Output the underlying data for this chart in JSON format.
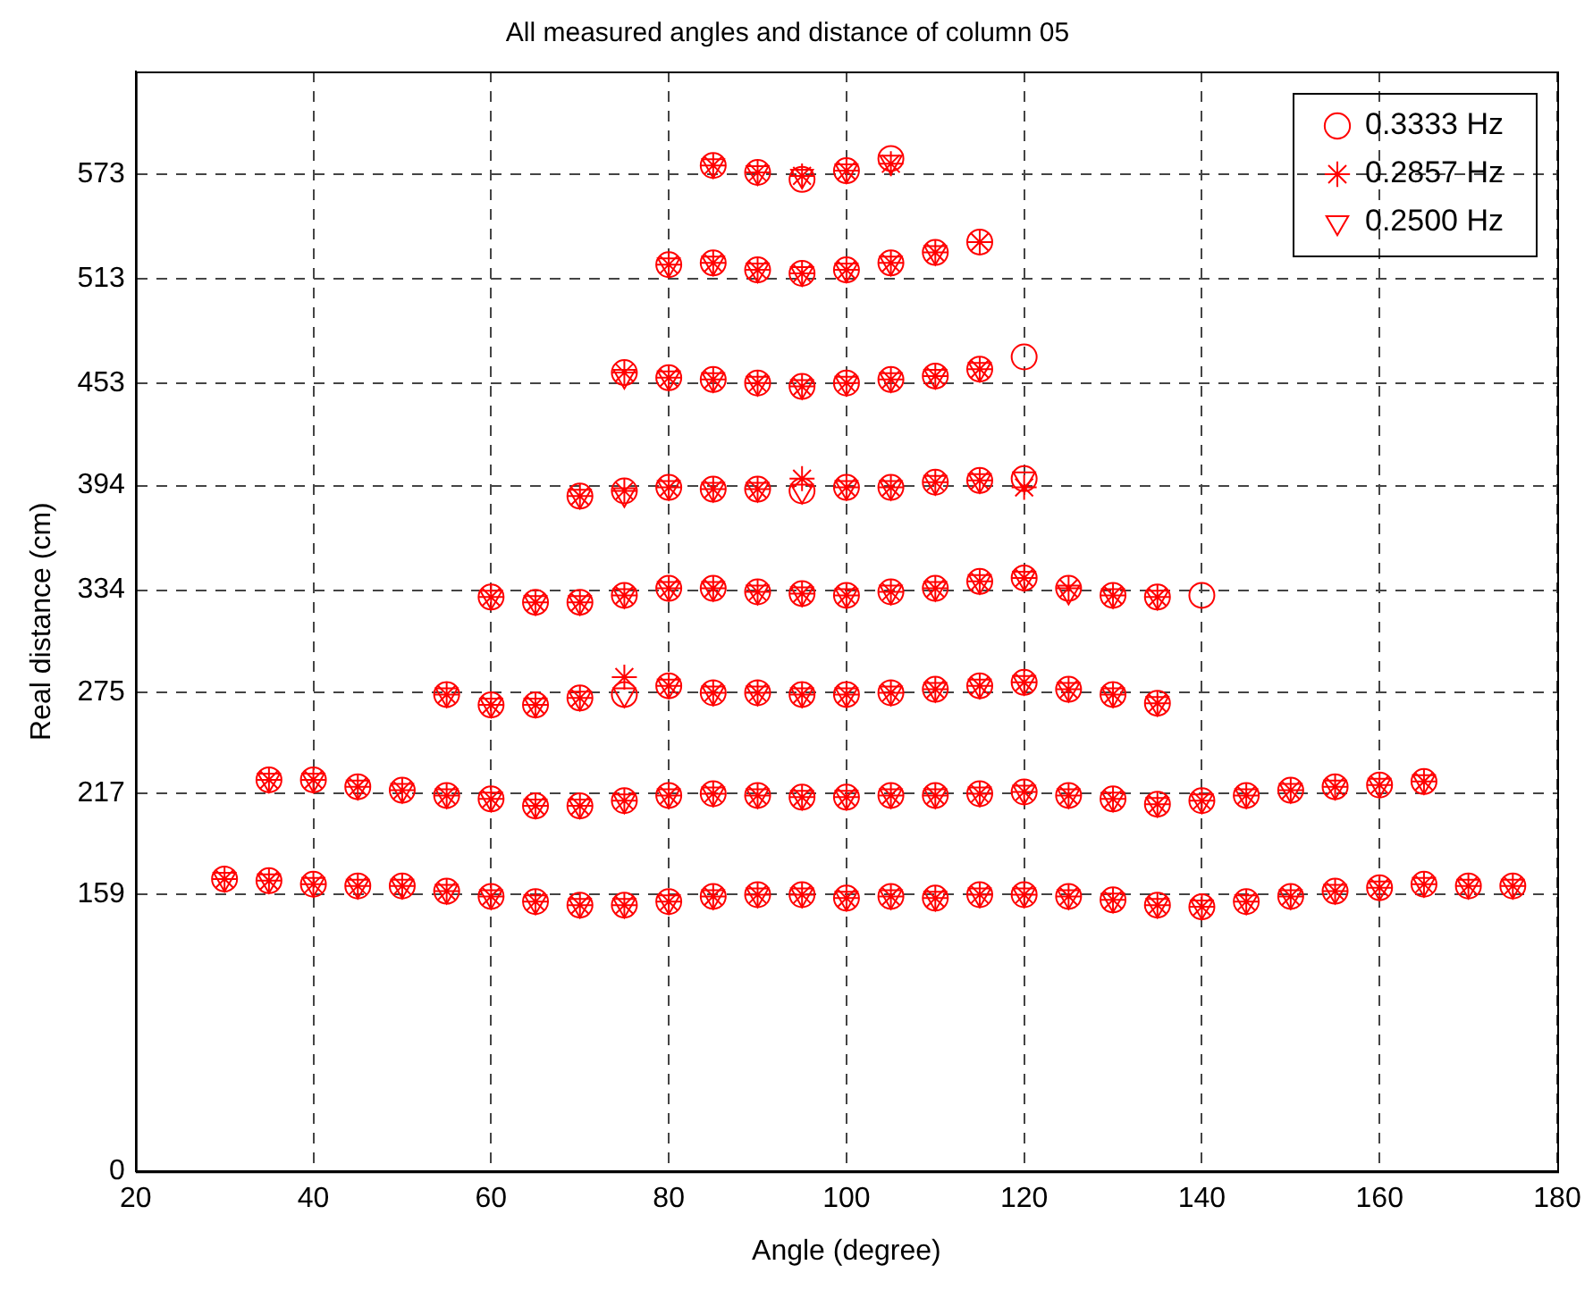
{
  "chart_data": {
    "type": "scatter",
    "title": "All measured angles and distance of column 05",
    "xlabel": "Angle (degree)",
    "ylabel": "Real distance (cm)",
    "xlim": [
      20,
      180
    ],
    "xticks": [
      20,
      40,
      60,
      80,
      100,
      120,
      140,
      160,
      180
    ],
    "ylim": [
      0,
      632
    ],
    "yticks": [
      0,
      159,
      217,
      275,
      334,
      394,
      453,
      513,
      573
    ],
    "grid": true,
    "legend": "top right",
    "series": [
      {
        "name": "0.3333 Hz",
        "color": "#ff0000",
        "marker": "circle",
        "x": [
          30,
          35,
          40,
          45,
          50,
          55,
          60,
          65,
          70,
          75,
          80,
          85,
          90,
          95,
          100,
          105,
          110,
          115,
          120,
          125,
          130,
          135,
          140,
          145,
          150,
          155,
          160,
          165,
          170,
          175,
          35,
          40,
          45,
          50,
          55,
          60,
          65,
          70,
          75,
          80,
          85,
          90,
          95,
          100,
          105,
          110,
          115,
          120,
          125,
          130,
          135,
          140,
          145,
          150,
          155,
          160,
          165,
          55,
          60,
          65,
          70,
          75,
          80,
          85,
          90,
          95,
          100,
          105,
          110,
          115,
          120,
          125,
          130,
          135,
          60,
          65,
          70,
          75,
          80,
          85,
          90,
          95,
          100,
          105,
          110,
          115,
          120,
          125,
          130,
          135,
          140,
          70,
          75,
          80,
          85,
          90,
          95,
          100,
          105,
          110,
          115,
          120,
          75,
          80,
          85,
          90,
          95,
          100,
          105,
          110,
          115,
          120,
          80,
          85,
          90,
          95,
          100,
          105,
          110,
          115,
          85,
          90,
          95,
          100,
          105
        ],
        "values": [
          168,
          167,
          165,
          164,
          164,
          161,
          158,
          155,
          153,
          153,
          155,
          158,
          159,
          159,
          157,
          158,
          157,
          159,
          159,
          158,
          156,
          153,
          152,
          155,
          158,
          161,
          163,
          165,
          164,
          164,
          225,
          225,
          221,
          219,
          216,
          214,
          210,
          210,
          213,
          216,
          217,
          216,
          215,
          215,
          216,
          216,
          217,
          218,
          216,
          214,
          211,
          213,
          216,
          219,
          221,
          222,
          224,
          274,
          268,
          268,
          272,
          274,
          279,
          275,
          275,
          274,
          274,
          275,
          277,
          279,
          281,
          277,
          274,
          269,
          330,
          327,
          327,
          331,
          335,
          335,
          333,
          332,
          331,
          333,
          335,
          339,
          341,
          335,
          331,
          330,
          331,
          388,
          391,
          393,
          392,
          392,
          391,
          393,
          393,
          396,
          397,
          398,
          459,
          456,
          455,
          453,
          451,
          453,
          455,
          457,
          461,
          468,
          521,
          522,
          518,
          516,
          518,
          522,
          528,
          534,
          578,
          574,
          570,
          575,
          582
        ]
      },
      {
        "name": "0.2857 Hz",
        "color": "#ff0000",
        "marker": "cross",
        "x": [
          30,
          35,
          40,
          45,
          50,
          55,
          60,
          65,
          70,
          75,
          80,
          85,
          90,
          95,
          100,
          105,
          110,
          115,
          120,
          125,
          130,
          135,
          140,
          145,
          150,
          155,
          160,
          165,
          170,
          175,
          35,
          40,
          45,
          50,
          55,
          60,
          65,
          70,
          75,
          80,
          85,
          90,
          95,
          100,
          105,
          110,
          115,
          120,
          125,
          130,
          135,
          140,
          145,
          150,
          155,
          160,
          165,
          55,
          60,
          65,
          70,
          75,
          80,
          85,
          90,
          95,
          100,
          105,
          110,
          115,
          120,
          125,
          130,
          135,
          60,
          65,
          70,
          75,
          80,
          85,
          90,
          95,
          100,
          105,
          110,
          115,
          120,
          125,
          130,
          135,
          70,
          75,
          80,
          85,
          90,
          95,
          100,
          105,
          110,
          115,
          120,
          75,
          80,
          85,
          90,
          95,
          100,
          105,
          110,
          115,
          80,
          85,
          90,
          95,
          100,
          105,
          110,
          115,
          85,
          90,
          95,
          100,
          105
        ],
        "values": [
          168,
          167,
          165,
          164,
          164,
          161,
          158,
          155,
          153,
          153,
          155,
          158,
          159,
          159,
          157,
          158,
          157,
          159,
          159,
          158,
          156,
          153,
          152,
          155,
          158,
          161,
          163,
          165,
          164,
          164,
          225,
          225,
          221,
          219,
          216,
          214,
          210,
          210,
          213,
          216,
          217,
          216,
          215,
          215,
          216,
          216,
          217,
          218,
          216,
          214,
          211,
          213,
          216,
          219,
          221,
          222,
          224,
          274,
          268,
          268,
          272,
          284,
          279,
          275,
          275,
          274,
          274,
          275,
          277,
          279,
          281,
          277,
          274,
          269,
          330,
          327,
          327,
          331,
          335,
          335,
          333,
          332,
          331,
          333,
          335,
          339,
          341,
          335,
          331,
          330,
          388,
          391,
          393,
          392,
          392,
          398,
          393,
          393,
          396,
          397,
          393,
          459,
          456,
          455,
          453,
          451,
          453,
          455,
          457,
          461,
          521,
          522,
          518,
          516,
          518,
          522,
          528,
          534,
          578,
          574,
          572,
          575,
          579
        ]
      },
      {
        "name": "0.2500 Hz",
        "color": "#ff0000",
        "marker": "triangle",
        "x": [
          30,
          35,
          40,
          45,
          50,
          55,
          60,
          65,
          70,
          75,
          80,
          85,
          90,
          95,
          100,
          105,
          110,
          115,
          120,
          125,
          130,
          135,
          140,
          145,
          150,
          155,
          160,
          165,
          170,
          175,
          35,
          40,
          45,
          50,
          55,
          60,
          65,
          70,
          75,
          80,
          85,
          90,
          95,
          100,
          105,
          110,
          115,
          120,
          125,
          130,
          135,
          140,
          145,
          150,
          155,
          160,
          165,
          55,
          60,
          65,
          70,
          75,
          80,
          85,
          90,
          95,
          100,
          105,
          110,
          115,
          120,
          125,
          130,
          135,
          60,
          65,
          70,
          75,
          80,
          85,
          90,
          95,
          100,
          105,
          110,
          115,
          120,
          125,
          130,
          135,
          70,
          75,
          80,
          85,
          90,
          95,
          100,
          105,
          110,
          115,
          120,
          75,
          80,
          85,
          90,
          95,
          100,
          105,
          110,
          115,
          80,
          85,
          90,
          95,
          100,
          105,
          110,
          85,
          90,
          95,
          100,
          105
        ],
        "values": [
          168,
          167,
          165,
          164,
          164,
          161,
          158,
          155,
          153,
          153,
          155,
          158,
          159,
          159,
          157,
          158,
          157,
          159,
          159,
          158,
          156,
          153,
          152,
          155,
          158,
          161,
          163,
          165,
          164,
          164,
          225,
          225,
          221,
          219,
          216,
          214,
          210,
          210,
          213,
          216,
          217,
          216,
          215,
          215,
          216,
          216,
          217,
          218,
          216,
          214,
          211,
          213,
          216,
          219,
          221,
          222,
          224,
          274,
          268,
          268,
          272,
          274,
          279,
          275,
          275,
          274,
          274,
          275,
          277,
          279,
          281,
          277,
          274,
          269,
          330,
          327,
          327,
          331,
          335,
          335,
          333,
          332,
          331,
          333,
          335,
          339,
          341,
          333,
          331,
          330,
          388,
          389,
          393,
          392,
          392,
          391,
          393,
          393,
          396,
          397,
          398,
          457,
          456,
          455,
          453,
          451,
          453,
          455,
          457,
          461,
          521,
          522,
          518,
          516,
          518,
          522,
          528,
          578,
          574,
          572,
          575,
          580
        ]
      }
    ]
  }
}
